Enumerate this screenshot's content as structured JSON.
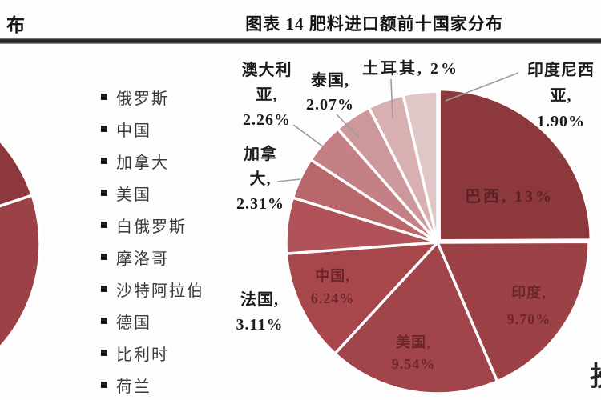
{
  "header": {
    "left_title_fragment": "布",
    "chart_title": "图表 14 肥料进口额前十国家分布"
  },
  "legend": {
    "items": [
      "俄罗斯",
      "中国",
      "加拿大",
      "美国",
      "白俄罗斯",
      "摩洛哥",
      "沙特阿拉伯",
      "德国",
      "比利时",
      "荷兰"
    ]
  },
  "chart_data": {
    "type": "pie",
    "title": "图表 14 肥料进口额前十国家分布",
    "unit": "%",
    "direction": "clockwise",
    "start_angle": "top",
    "slices": [
      {
        "key": "brazil",
        "name": "巴西",
        "value": 13,
        "display": "13%",
        "color": "#8c383c",
        "label_inside": true
      },
      {
        "key": "india",
        "name": "印度",
        "value": 9.7,
        "display": "9.70%",
        "color": "#9c4146",
        "label_inside": true
      },
      {
        "key": "usa",
        "name": "美国",
        "value": 9.54,
        "display": "9.54%",
        "color": "#a2454a",
        "label_inside": true
      },
      {
        "key": "china",
        "name": "中国",
        "value": 6.24,
        "display": "6.24%",
        "color": "#a7474b",
        "label_inside": true
      },
      {
        "key": "france",
        "name": "法国",
        "value": 3.11,
        "display": "3.11%",
        "color": "#b05257",
        "label_inside": false
      },
      {
        "key": "canada",
        "name": "加拿大",
        "value": 2.31,
        "display": "2.31%",
        "color": "#ba676c",
        "label_inside": false
      },
      {
        "key": "australia",
        "name": "澳大利亚",
        "value": 2.26,
        "display": "2.26%",
        "color": "#c48084",
        "label_inside": false
      },
      {
        "key": "thailand",
        "name": "泰国",
        "value": 2.07,
        "display": "2.07%",
        "color": "#cd989b",
        "label_inside": false
      },
      {
        "key": "turkey",
        "name": "土耳其",
        "value": 2,
        "display": "2%",
        "color": "#d8b0b1",
        "label_inside": false
      },
      {
        "key": "indonesia",
        "name": "印度尼西亚",
        "value": 1.9,
        "display": "1.90%",
        "color": "#e0c6c6",
        "label_inside": false
      }
    ]
  },
  "labels": {
    "brazil": [
      "巴西, 13%"
    ],
    "india": [
      "印度,",
      "9.70%"
    ],
    "usa": [
      "美国,",
      "9.54%"
    ],
    "china": [
      "中国,",
      "6.24%"
    ],
    "france": [
      "法国,",
      "3.11%"
    ],
    "canada": [
      "加拿",
      "大,",
      "2.31%"
    ],
    "australia": [
      "澳大利",
      "亚,",
      "2.26%"
    ],
    "thailand": [
      "泰国,",
      "2.07%"
    ],
    "turkey": [
      "土耳其, 2%"
    ],
    "indonesia": [
      "印度尼西",
      "亚,",
      "1.90%"
    ]
  },
  "left_chart_fragment": {
    "slice_colors": [
      "#8c383c",
      "#9c4146"
    ]
  },
  "right_edge_fragment": "投"
}
